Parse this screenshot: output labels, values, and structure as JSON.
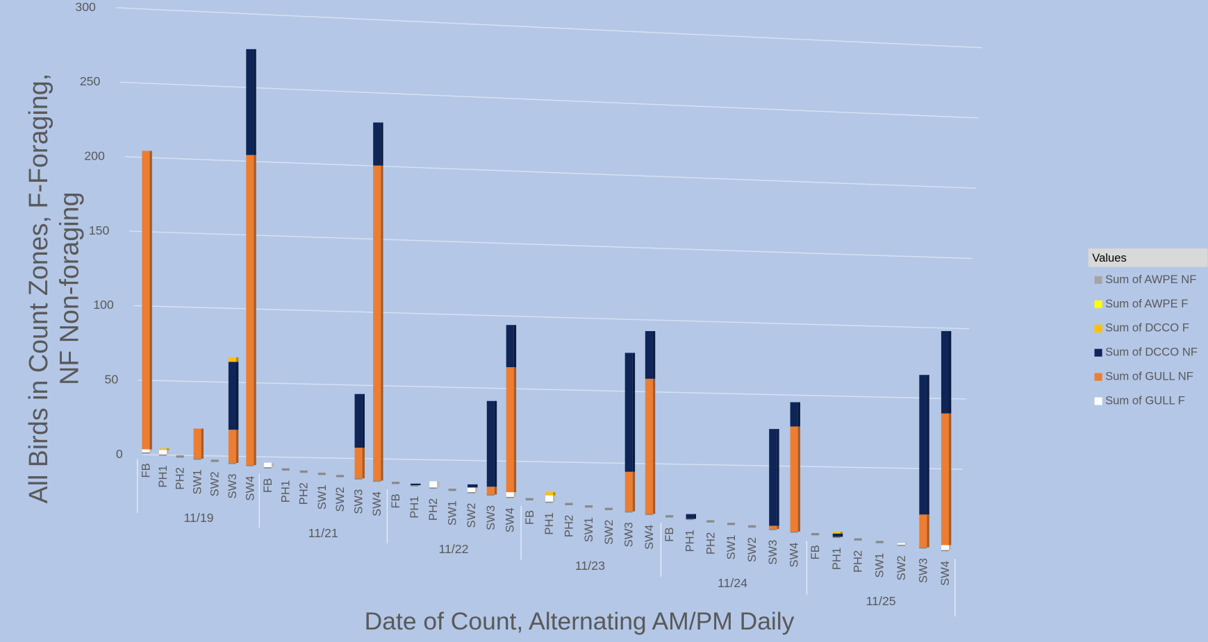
{
  "chart_data": {
    "type": "bar3d",
    "stacked": true,
    "y_label_lines": [
      "All Birds in Count Zones, F-Foraging,",
      "NF Non-foraging"
    ],
    "x_label": "Date of Count, Alternating AM/PM Daily",
    "legend_title": "Values",
    "legend_position": "right",
    "grid": true,
    "ylim": [
      0,
      300
    ],
    "yticks": [
      0,
      50,
      100,
      150,
      200,
      250,
      300
    ],
    "date_groups": [
      {
        "label": "11/19",
        "zones": [
          "FB",
          "PH1",
          "PH2",
          "SW1",
          "SW2",
          "SW3",
          "SW4"
        ]
      },
      {
        "label": "11/21",
        "zones": [
          "FB",
          "PH1",
          "PH2",
          "SW1",
          "SW2",
          "SW3",
          "SW4"
        ]
      },
      {
        "label": "11/22",
        "zones": [
          "FB",
          "PH1",
          "PH2",
          "SW1",
          "SW2",
          "SW3",
          "SW4"
        ]
      },
      {
        "label": "11/23",
        "zones": [
          "FB",
          "PH1",
          "PH2",
          "SW1",
          "SW2",
          "SW3",
          "SW4"
        ]
      },
      {
        "label": "11/24",
        "zones": [
          "FB",
          "PH1",
          "PH2",
          "SW1",
          "SW2",
          "SW3",
          "SW4"
        ]
      },
      {
        "label": "11/25",
        "zones": [
          "FB",
          "PH1",
          "PH2",
          "SW1",
          "SW2",
          "SW3",
          "SW4"
        ]
      }
    ],
    "series": [
      {
        "name": "Sum of AWPE NF",
        "color": "#a5a5a5",
        "values": [
          0,
          0,
          0,
          0,
          0,
          0,
          0,
          0,
          0,
          0,
          0,
          0,
          0,
          0,
          0,
          0,
          0,
          0,
          0,
          0,
          0,
          0,
          0,
          0,
          0,
          0,
          0,
          0,
          0,
          0,
          0,
          0,
          0,
          0,
          0,
          0,
          0,
          0,
          0,
          0,
          0,
          0
        ]
      },
      {
        "name": "Sum of AWPE F",
        "color": "#ffff00",
        "values": [
          0,
          0,
          0,
          0,
          0,
          0,
          0,
          0,
          0,
          0,
          0,
          0,
          0,
          0,
          0,
          0,
          0,
          0,
          0,
          0,
          0,
          0,
          0,
          0,
          0,
          0,
          0,
          0,
          0,
          0,
          0,
          0,
          0,
          0,
          0,
          0,
          0,
          0,
          0,
          0,
          0,
          0
        ]
      },
      {
        "name": "Sum of DCCO F",
        "color": "#ffc000",
        "values": [
          0,
          1,
          0,
          0,
          0,
          3,
          0,
          0,
          0,
          0,
          0,
          0,
          0,
          0,
          0,
          0,
          0,
          0,
          0,
          0,
          0,
          0,
          2,
          0,
          0,
          0,
          0,
          0,
          0,
          0,
          0,
          0,
          0,
          0,
          0,
          0,
          1,
          0,
          0,
          0,
          0,
          0
        ]
      },
      {
        "name": "Sum of DCCO NF",
        "color": "#0f2557",
        "values": [
          0,
          0,
          0,
          0,
          0,
          45,
          70,
          0,
          0,
          0,
          0,
          0,
          35,
          28,
          0,
          1,
          0,
          0,
          2,
          55,
          27,
          0,
          0,
          0,
          0,
          0,
          75,
          30,
          0,
          3,
          0,
          0,
          0,
          60,
          15,
          0,
          2,
          0,
          0,
          0,
          85,
          50
        ]
      },
      {
        "name": "Sum of GULL NF",
        "color": "#ed7d31",
        "values": [
          200,
          0,
          0,
          20,
          0,
          22,
          205,
          0,
          0,
          0,
          0,
          0,
          20,
          205,
          0,
          0,
          0,
          0,
          0,
          5,
          80,
          0,
          0,
          0,
          0,
          0,
          25,
          85,
          0,
          0,
          0,
          0,
          0,
          2,
          65,
          0,
          0,
          0,
          0,
          0,
          20,
          80
        ]
      },
      {
        "name": "Sum of GULL F",
        "color": "#ffffff",
        "values": [
          2,
          3,
          0,
          0,
          0,
          0,
          0,
          3,
          0,
          0,
          0,
          0,
          0,
          0,
          0,
          0,
          4,
          0,
          3,
          0,
          3,
          0,
          4,
          0,
          0,
          0,
          0,
          0,
          0,
          0,
          0,
          0,
          0,
          0,
          0,
          0,
          0,
          0,
          0,
          1,
          0,
          3
        ]
      }
    ]
  }
}
